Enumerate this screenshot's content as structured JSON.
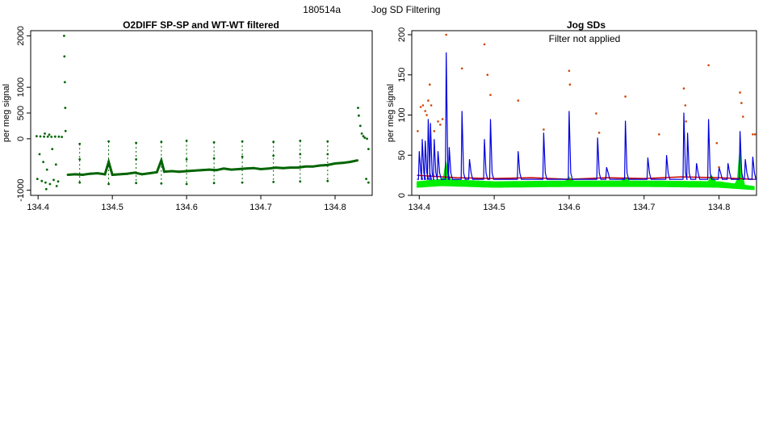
{
  "figure": {
    "run_id": "180514a",
    "title": "Jog SD Filtering"
  },
  "chart_data": [
    {
      "type": "scatter",
      "title": "O2DIFF SP-SP and WT-WT filtered",
      "xlabel": "",
      "ylabel": "per meg signal",
      "xlim": [
        134.39,
        134.85
      ],
      "ylim": [
        -1100,
        2100
      ],
      "xticks": [
        134.4,
        134.5,
        134.6,
        134.7,
        134.8
      ],
      "yticks": [
        -1000,
        0,
        500,
        1000,
        2000
      ],
      "grid": false,
      "series": [
        {
          "color": "#006400",
          "points": [
            [
              134.398,
              50
            ],
            [
              134.403,
              45
            ],
            [
              134.408,
              40
            ],
            [
              134.413,
              40
            ],
            [
              134.418,
              38
            ],
            [
              134.423,
              42
            ],
            [
              134.428,
              40
            ],
            [
              134.432,
              35
            ],
            [
              134.399,
              -780
            ],
            [
              134.405,
              -820
            ],
            [
              134.41,
              -850
            ],
            [
              134.416,
              -880
            ],
            [
              134.421,
              -800
            ],
            [
              134.427,
              -830
            ],
            [
              134.402,
              -300
            ],
            [
              134.407,
              -450
            ],
            [
              134.412,
              -600
            ],
            [
              134.419,
              -200
            ],
            [
              134.424,
              -500
            ],
            [
              134.409,
              100
            ],
            [
              134.415,
              80
            ],
            [
              134.411,
              -980
            ],
            [
              134.425,
              -920
            ],
            [
              134.435,
              2000
            ],
            [
              134.4355,
              1600
            ],
            [
              134.436,
              1100
            ],
            [
              134.4365,
              600
            ],
            [
              134.437,
              150
            ],
            [
              134.44,
              -700
            ],
            [
              134.45,
              -690
            ],
            [
              134.46,
              -700
            ],
            [
              134.47,
              -680
            ],
            [
              134.48,
              -670
            ],
            [
              134.49,
              -690
            ],
            [
              134.5,
              -700
            ],
            [
              134.51,
              -690
            ],
            [
              134.52,
              -680
            ],
            [
              134.53,
              -660
            ],
            [
              134.54,
              -690
            ],
            [
              134.55,
              -670
            ],
            [
              134.56,
              -650
            ],
            [
              134.57,
              -640
            ],
            [
              134.58,
              -630
            ],
            [
              134.59,
              -640
            ],
            [
              134.6,
              -630
            ],
            [
              134.61,
              -620
            ],
            [
              134.62,
              -610
            ],
            [
              134.63,
              -600
            ],
            [
              134.64,
              -610
            ],
            [
              134.65,
              -580
            ],
            [
              134.66,
              -600
            ],
            [
              134.67,
              -590
            ],
            [
              134.68,
              -580
            ],
            [
              134.69,
              -570
            ],
            [
              134.7,
              -590
            ],
            [
              134.71,
              -580
            ],
            [
              134.72,
              -560
            ],
            [
              134.73,
              -570
            ],
            [
              134.74,
              -560
            ],
            [
              134.75,
              -560
            ],
            [
              134.76,
              -540
            ],
            [
              134.77,
              -540
            ],
            [
              134.78,
              -520
            ],
            [
              134.79,
              -510
            ],
            [
              134.8,
              -480
            ],
            [
              134.81,
              -470
            ],
            [
              134.82,
              -450
            ],
            [
              134.83,
              -420
            ],
            [
              134.456,
              -100
            ],
            [
              134.456,
              -400
            ],
            [
              134.456,
              -850
            ],
            [
              134.495,
              -50
            ],
            [
              134.495,
              -450
            ],
            [
              134.495,
              -880
            ],
            [
              134.532,
              -80
            ],
            [
              134.532,
              -400
            ],
            [
              134.532,
              -860
            ],
            [
              134.566,
              -60
            ],
            [
              134.566,
              -420
            ],
            [
              134.566,
              -870
            ],
            [
              134.6,
              -40
            ],
            [
              134.6,
              -400
            ],
            [
              134.6,
              -880
            ],
            [
              134.637,
              -70
            ],
            [
              134.637,
              -380
            ],
            [
              134.637,
              -860
            ],
            [
              134.675,
              -50
            ],
            [
              134.675,
              -350
            ],
            [
              134.675,
              -850
            ],
            [
              134.717,
              -60
            ],
            [
              134.717,
              -330
            ],
            [
              134.717,
              -840
            ],
            [
              134.753,
              -40
            ],
            [
              134.753,
              -300
            ],
            [
              134.753,
              -830
            ],
            [
              134.79,
              -50
            ],
            [
              134.79,
              -300
            ],
            [
              134.79,
              -820
            ],
            [
              134.831,
              600
            ],
            [
              134.832,
              450
            ],
            [
              134.834,
              250
            ],
            [
              134.836,
              100
            ],
            [
              134.838,
              50
            ],
            [
              134.84,
              20
            ],
            [
              134.843,
              0
            ],
            [
              134.845,
              -200
            ],
            [
              134.845,
              -850
            ],
            [
              134.842,
              -780
            ]
          ]
        }
      ]
    },
    {
      "type": "line",
      "title": "Jog SDs",
      "annotation": "Filter not applied",
      "xlabel": "",
      "ylabel": "per meg signal",
      "xlim": [
        134.39,
        134.85
      ],
      "ylim": [
        0,
        205
      ],
      "xticks": [
        134.4,
        134.5,
        134.6,
        134.7,
        134.8
      ],
      "yticks": [
        0,
        50,
        100,
        150,
        200
      ],
      "grid": false,
      "series": [
        {
          "color": "#00ee00",
          "style": "band",
          "lower": [
            [
              134.397,
              10
            ],
            [
              134.43,
              12
            ],
            [
              134.5,
              10
            ],
            [
              134.6,
              11
            ],
            [
              134.7,
              11
            ],
            [
              134.8,
              10
            ],
            [
              134.847,
              7
            ]
          ],
          "upper": [
            [
              134.397,
              17
            ],
            [
              134.43,
              20
            ],
            [
              134.5,
              17
            ],
            [
              134.6,
              18
            ],
            [
              134.7,
              18
            ],
            [
              134.8,
              17
            ],
            [
              134.847,
              11
            ]
          ],
          "bumps": [
            [
              134.436,
              45
            ],
            [
              134.6,
              24
            ],
            [
              134.675,
              25
            ],
            [
              134.79,
              28
            ],
            [
              134.828,
              60
            ]
          ]
        },
        {
          "color": "#cc0000",
          "style": "line",
          "points": [
            [
              134.397,
              25
            ],
            [
              134.45,
              22
            ],
            [
              134.5,
              21
            ],
            [
              134.55,
              22
            ],
            [
              134.6,
              20
            ],
            [
              134.65,
              22
            ],
            [
              134.7,
              21
            ],
            [
              134.75,
              23
            ],
            [
              134.8,
              22
            ],
            [
              134.847,
              20
            ]
          ]
        },
        {
          "color": "#0000dd",
          "style": "spikes",
          "baseline": 20,
          "spikes": [
            [
              134.4,
              55
            ],
            [
              134.404,
              70
            ],
            [
              134.408,
              68
            ],
            [
              134.412,
              95
            ],
            [
              134.415,
              90
            ],
            [
              134.42,
              70
            ],
            [
              134.425,
              55
            ],
            [
              134.436,
              178
            ],
            [
              134.44,
              60
            ],
            [
              134.457,
              105
            ],
            [
              134.467,
              45
            ],
            [
              134.487,
              70
            ],
            [
              134.495,
              95
            ],
            [
              134.532,
              55
            ],
            [
              134.566,
              78
            ],
            [
              134.6,
              105
            ],
            [
              134.638,
              72
            ],
            [
              134.65,
              35
            ],
            [
              134.675,
              93
            ],
            [
              134.705,
              47
            ],
            [
              134.73,
              50
            ],
            [
              134.753,
              103
            ],
            [
              134.758,
              78
            ],
            [
              134.77,
              40
            ],
            [
              134.786,
              95
            ],
            [
              134.8,
              35
            ],
            [
              134.812,
              40
            ],
            [
              134.828,
              80
            ],
            [
              134.835,
              45
            ],
            [
              134.845,
              48
            ]
          ]
        },
        {
          "color": "#cc4400",
          "style": "points",
          "points": [
            [
              134.398,
              80
            ],
            [
              134.402,
              110
            ],
            [
              134.405,
              112
            ],
            [
              134.408,
              105
            ],
            [
              134.41,
              100
            ],
            [
              134.412,
              118
            ],
            [
              134.414,
              138
            ],
            [
              134.416,
              112
            ],
            [
              134.42,
              80
            ],
            [
              134.425,
              92
            ],
            [
              134.428,
              88
            ],
            [
              134.431,
              95
            ],
            [
              134.436,
              200
            ],
            [
              134.457,
              158
            ],
            [
              134.487,
              188
            ],
            [
              134.491,
              150
            ],
            [
              134.495,
              125
            ],
            [
              134.532,
              118
            ],
            [
              134.566,
              82
            ],
            [
              134.6,
              155
            ],
            [
              134.601,
              138
            ],
            [
              134.636,
              102
            ],
            [
              134.64,
              78
            ],
            [
              134.675,
              123
            ],
            [
              134.72,
              76
            ],
            [
              134.753,
              133
            ],
            [
              134.755,
              112
            ],
            [
              134.756,
              92
            ],
            [
              134.786,
              162
            ],
            [
              134.797,
              65
            ],
            [
              134.8,
              35
            ],
            [
              134.828,
              128
            ],
            [
              134.83,
              115
            ],
            [
              134.832,
              98
            ],
            [
              134.845,
              76
            ],
            [
              134.848,
              76
            ]
          ]
        }
      ]
    }
  ]
}
